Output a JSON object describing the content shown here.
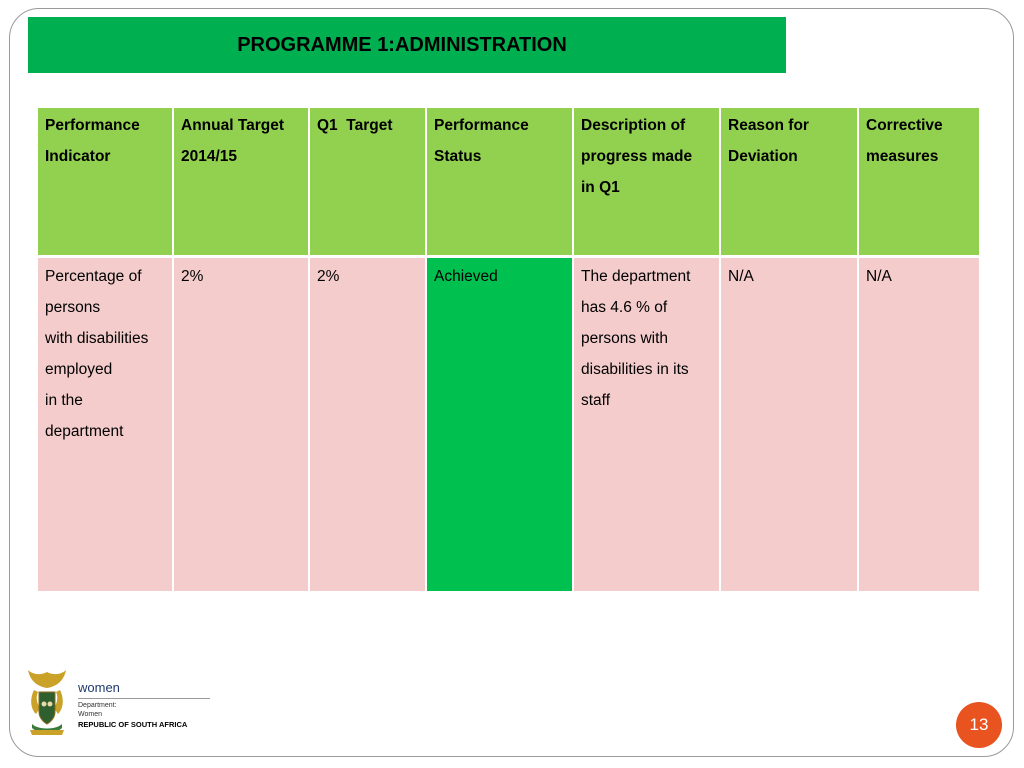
{
  "slide": {
    "title": "PROGRAMME 1:ADMINISTRATION",
    "page_number": "13"
  },
  "table": {
    "headers": [
      [
        "Performance",
        "Indicator"
      ],
      [
        "Annual Target",
        "2014/15"
      ],
      [
        "Q1  Target"
      ],
      [
        "Performance",
        "Status"
      ],
      [
        "Description of",
        "progress made",
        "in Q1"
      ],
      [
        "Reason for",
        "Deviation"
      ],
      [
        "Corrective",
        "measures"
      ]
    ],
    "rows": [
      [
        [
          "Percentage of",
          "persons",
          "with disabilities",
          "employed",
          "in the",
          "department"
        ],
        [
          "2%"
        ],
        [
          "2%"
        ],
        [
          "Achieved"
        ],
        [
          "The department",
          "has 4.6 % of",
          "persons with",
          "disabilities in its",
          "staff"
        ],
        [
          "N/A"
        ],
        [
          "N/A"
        ]
      ]
    ]
  },
  "logo": {
    "wordmark": "women",
    "line1": "Department:",
    "line2": "Women",
    "line3": "REPUBLIC OF SOUTH AFRICA"
  },
  "colors": {
    "title_bar": "#00b050",
    "header_row": "#92d050",
    "body_row": "#f4cccc",
    "status_achieved": "#00c050",
    "page_badge": "#e8531f"
  }
}
